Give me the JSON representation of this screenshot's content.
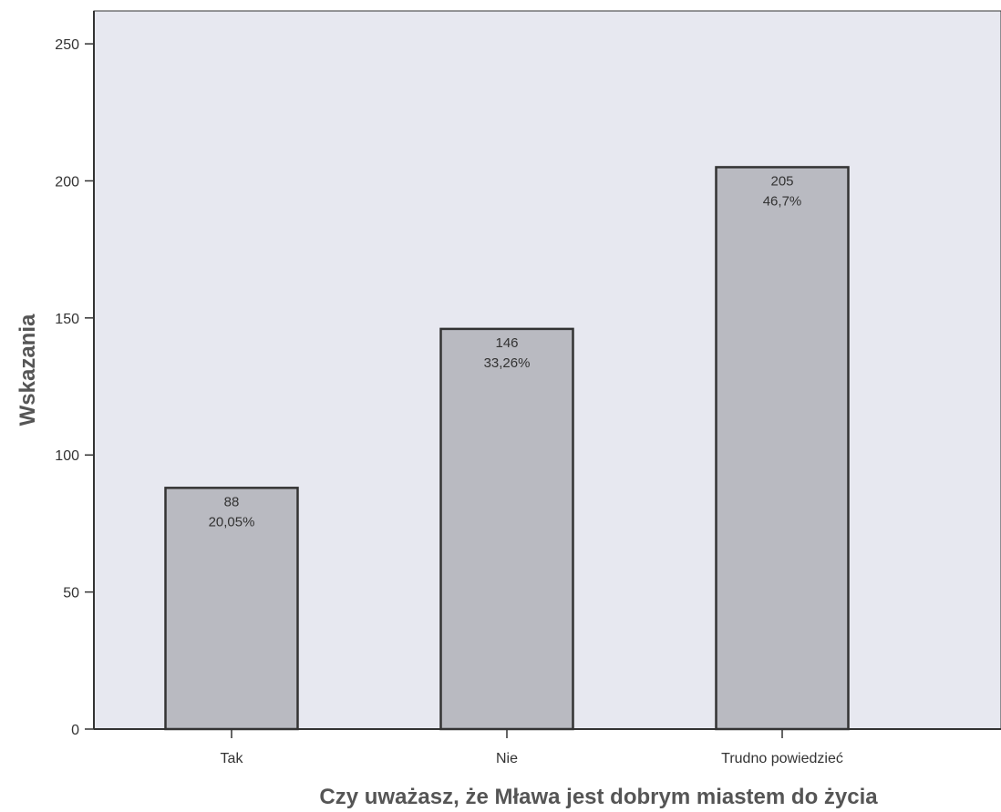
{
  "chart_data": {
    "type": "bar",
    "categories": [
      "Tak",
      "Nie",
      "Trudno powiedzieć"
    ],
    "values": [
      88,
      146,
      205
    ],
    "value_labels": [
      "88",
      "146",
      "205"
    ],
    "percent_labels": [
      "20,05%",
      "33,26%",
      "46,7%"
    ],
    "xlabel": "Czy uważasz, że Mława jest dobrym miastem do życia",
    "ylabel": "Wskazania",
    "ylim": [
      0,
      262
    ],
    "yticks": [
      0,
      50,
      100,
      150,
      200,
      250
    ],
    "ytick_labels": [
      "0",
      "50",
      "100",
      "150",
      "200",
      "250"
    ],
    "grid": false,
    "legend": "none",
    "colors": {
      "plot_background": "#e7e8f0",
      "bar_fill": "#b9bac1",
      "bar_stroke": "#333333",
      "axis": "#333333"
    }
  }
}
